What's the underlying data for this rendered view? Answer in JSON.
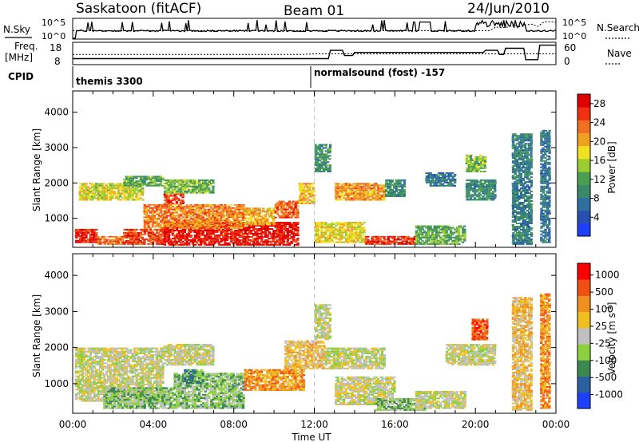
{
  "header": {
    "station": "Saskatoon (fitACF)",
    "beam": "Beam 01",
    "date": "24/Jun/2010"
  },
  "strips": {
    "nsky_label": "N.Sky",
    "nsky_ticks": [
      "10^5",
      "10^0"
    ],
    "nsearch_label": "N.Search",
    "freq_label_1": "Freq.",
    "freq_label_2": "[MHz]",
    "freq_ticks": [
      "18",
      "8"
    ],
    "nave_label": "Nave",
    "nave_ticks": [
      "60",
      "0"
    ],
    "cpid_label": "CPID",
    "cpid_programs": [
      "themis 3300",
      "normalsound (fost) -157"
    ]
  },
  "chart_data": [
    {
      "type": "heatmap",
      "panel": "power",
      "xlabel": "Time UT",
      "ylabel": "Slant Range [km]",
      "x_ticks": [
        "00:00",
        "04:00",
        "08:00",
        "12:00",
        "16:00",
        "20:00",
        "00:00"
      ],
      "y_ticks": [
        1000,
        2000,
        3000,
        4000
      ],
      "ylim": [
        180,
        4600
      ],
      "xlim_hours": [
        0,
        24
      ],
      "colorbar": {
        "label": "Power [dB]",
        "ticks": [
          4,
          8,
          12,
          16,
          20,
          24,
          28
        ],
        "range": [
          0,
          30
        ],
        "colors": [
          "#1f3fff",
          "#2850b0",
          "#2f6fa0",
          "#3a8a6a",
          "#4aa050",
          "#9ccc30",
          "#f0e020",
          "#f0a020",
          "#f07020",
          "#f03010",
          "#e00000"
        ]
      },
      "regions": [
        {
          "t": [
            0.1,
            1.2
          ],
          "r": [
            300,
            700
          ],
          "level": 28
        },
        {
          "t": [
            1.2,
            2.5
          ],
          "r": [
            250,
            500
          ],
          "level": 24
        },
        {
          "t": [
            2.5,
            4.5
          ],
          "r": [
            250,
            700
          ],
          "level": 26
        },
        {
          "t": [
            4.5,
            11.2
          ],
          "r": [
            230,
            900
          ],
          "level": 29
        },
        {
          "t": [
            3.5,
            8.5
          ],
          "r": [
            700,
            1400
          ],
          "level": 23
        },
        {
          "t": [
            0.3,
            3.5
          ],
          "r": [
            1500,
            2000
          ],
          "level": 17
        },
        {
          "t": [
            2.5,
            4.5
          ],
          "r": [
            1900,
            2200
          ],
          "level": 12
        },
        {
          "t": [
            4.5,
            5.5
          ],
          "r": [
            1400,
            1700
          ],
          "level": 26
        },
        {
          "t": [
            4.5,
            7.0
          ],
          "r": [
            1700,
            2100
          ],
          "level": 13
        },
        {
          "t": [
            8.5,
            10.0
          ],
          "r": [
            800,
            1300
          ],
          "level": 20
        },
        {
          "t": [
            10.0,
            11.2
          ],
          "r": [
            1000,
            1500
          ],
          "level": 25
        },
        {
          "t": [
            11.2,
            12.0
          ],
          "r": [
            1400,
            2000
          ],
          "level": 20
        },
        {
          "t": [
            12.0,
            12.8
          ],
          "r": [
            2300,
            3100
          ],
          "level": 10
        },
        {
          "t": [
            12.0,
            14.5
          ],
          "r": [
            300,
            900
          ],
          "level": 18
        },
        {
          "t": [
            13.0,
            15.5
          ],
          "r": [
            1500,
            2000
          ],
          "level": 22
        },
        {
          "t": [
            15.5,
            16.5
          ],
          "r": [
            1600,
            2100
          ],
          "level": 9
        },
        {
          "t": [
            14.5,
            17.0
          ],
          "r": [
            250,
            500
          ],
          "level": 28
        },
        {
          "t": [
            17.0,
            19.5
          ],
          "r": [
            250,
            800
          ],
          "level": 12
        },
        {
          "t": [
            19.5,
            21.0
          ],
          "r": [
            1500,
            2100
          ],
          "level": 9
        },
        {
          "t": [
            19.5,
            20.5
          ],
          "r": [
            2300,
            2800
          ],
          "level": 14
        },
        {
          "t": [
            17.5,
            19.0
          ],
          "r": [
            1900,
            2300
          ],
          "level": 7
        },
        {
          "t": [
            21.8,
            22.8
          ],
          "r": [
            250,
            3400
          ],
          "level": 8
        },
        {
          "t": [
            23.2,
            23.7
          ],
          "r": [
            300,
            3500
          ],
          "level": 7
        }
      ]
    },
    {
      "type": "heatmap",
      "panel": "velocity",
      "xlabel": "Time UT",
      "ylabel": "Slant Range [km]",
      "x_ticks": [
        "00:00",
        "04:00",
        "08:00",
        "12:00",
        "16:00",
        "20:00",
        "00:00"
      ],
      "y_ticks": [
        1000,
        2000,
        3000,
        4000
      ],
      "ylim": [
        180,
        4600
      ],
      "xlim_hours": [
        0,
        24
      ],
      "colorbar": {
        "label": "Velocity [m s",
        "label_sup": "-1",
        "label_end": "]",
        "ticks": [
          "1000",
          "500",
          "100",
          "25",
          "-25",
          "-100",
          "-500",
          "-1000"
        ],
        "colors": [
          "#1f3fff",
          "#2a5fa0",
          "#3a8a50",
          "#8cd040",
          "#c0c0c0",
          "#f0c020",
          "#f09020",
          "#f05010",
          "#ff0000"
        ]
      },
      "regions": [
        {
          "t": [
            0.1,
            4.5
          ],
          "r": [
            500,
            2000
          ],
          "level": 4
        },
        {
          "t": [
            4.5,
            7.0
          ],
          "r": [
            1500,
            2100
          ],
          "level": 4
        },
        {
          "t": [
            1.5,
            8.5
          ],
          "r": [
            300,
            900
          ],
          "level": 3
        },
        {
          "t": [
            5.0,
            8.5
          ],
          "r": [
            900,
            1300
          ],
          "level": 3
        },
        {
          "t": [
            5.5,
            6.5
          ],
          "r": [
            1000,
            1400
          ],
          "level": 2
        },
        {
          "t": [
            8.5,
            11.5
          ],
          "r": [
            800,
            1400
          ],
          "level": 6
        },
        {
          "t": [
            10.5,
            12.5
          ],
          "r": [
            1400,
            2200
          ],
          "level": 5
        },
        {
          "t": [
            12.0,
            12.8
          ],
          "r": [
            2200,
            3200
          ],
          "level": 4
        },
        {
          "t": [
            12.5,
            15.5
          ],
          "r": [
            1400,
            2000
          ],
          "level": 4
        },
        {
          "t": [
            13.0,
            16.0
          ],
          "r": [
            400,
            1200
          ],
          "level": 4
        },
        {
          "t": [
            15.0,
            17.5
          ],
          "r": [
            250,
            600
          ],
          "level": 3
        },
        {
          "t": [
            17.0,
            19.5
          ],
          "r": [
            300,
            800
          ],
          "level": 4
        },
        {
          "t": [
            18.5,
            21.0
          ],
          "r": [
            1500,
            2100
          ],
          "level": 4
        },
        {
          "t": [
            19.8,
            20.6
          ],
          "r": [
            2200,
            2800
          ],
          "level": 7
        },
        {
          "t": [
            21.8,
            22.8
          ],
          "r": [
            250,
            3400
          ],
          "level": 5
        },
        {
          "t": [
            23.2,
            23.7
          ],
          "r": [
            300,
            3500
          ],
          "level": 6
        }
      ]
    }
  ],
  "colors": {
    "frame": "#000000",
    "midnight_line": "#c8c8c8"
  }
}
